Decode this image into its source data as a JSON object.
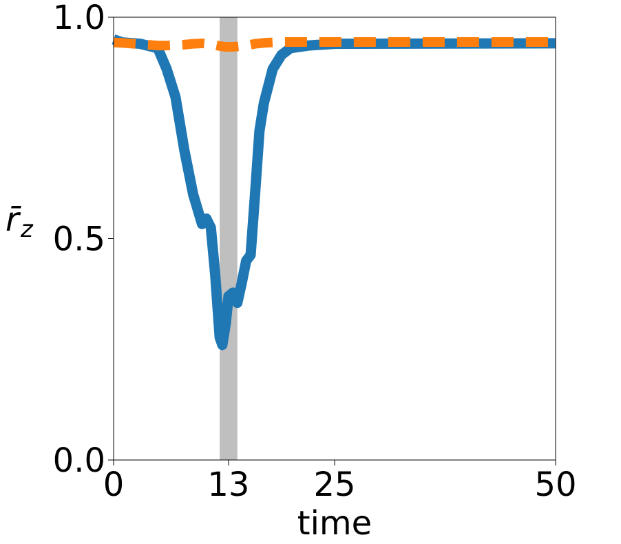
{
  "chart_data": {
    "type": "line",
    "xlabel": "time",
    "ylabel": "r̄",
    "ylabel_subscript": "z",
    "x": [
      0,
      1,
      3,
      5,
      6,
      7,
      8,
      9,
      10,
      10.5,
      11,
      11.5,
      12,
      12.3,
      12.7,
      13,
      13.5,
      14,
      14.5,
      15,
      15.5,
      16,
      16.5,
      17,
      18,
      19,
      20,
      22,
      25,
      50
    ],
    "series": [
      {
        "color": "#1f77b4",
        "style": "solid",
        "values": [
          0.95,
          0.943,
          0.94,
          0.93,
          0.883,
          0.82,
          0.7,
          0.6,
          0.533,
          0.545,
          0.525,
          0.417,
          0.277,
          0.26,
          0.31,
          0.37,
          0.378,
          0.355,
          0.4,
          0.45,
          0.463,
          0.6,
          0.743,
          0.806,
          0.883,
          0.915,
          0.93,
          0.936,
          0.94,
          0.941
        ]
      },
      {
        "color": "#ff7f0e",
        "style": "dashed",
        "values": [
          0.943,
          0.942,
          0.939,
          0.936,
          0.936,
          0.937,
          0.938,
          0.94,
          0.941,
          0.94,
          0.939,
          0.937,
          0.935,
          0.934,
          0.933,
          0.933,
          0.933,
          0.934,
          0.935,
          0.936,
          0.938,
          0.94,
          0.941,
          0.942,
          0.943,
          0.944,
          0.944,
          0.944,
          0.944,
          0.944
        ]
      }
    ],
    "shade": {
      "x": [
        12,
        14
      ],
      "color": "#bfbfbf"
    },
    "xlim": [
      0,
      50
    ],
    "xticks": [
      0,
      13,
      25,
      50
    ],
    "ylim": [
      0,
      1
    ],
    "yticks": [
      {
        "value": 0,
        "label": "0.0"
      },
      0.5,
      {
        "value": 1,
        "label": "1.0"
      }
    ],
    "grid": false
  }
}
